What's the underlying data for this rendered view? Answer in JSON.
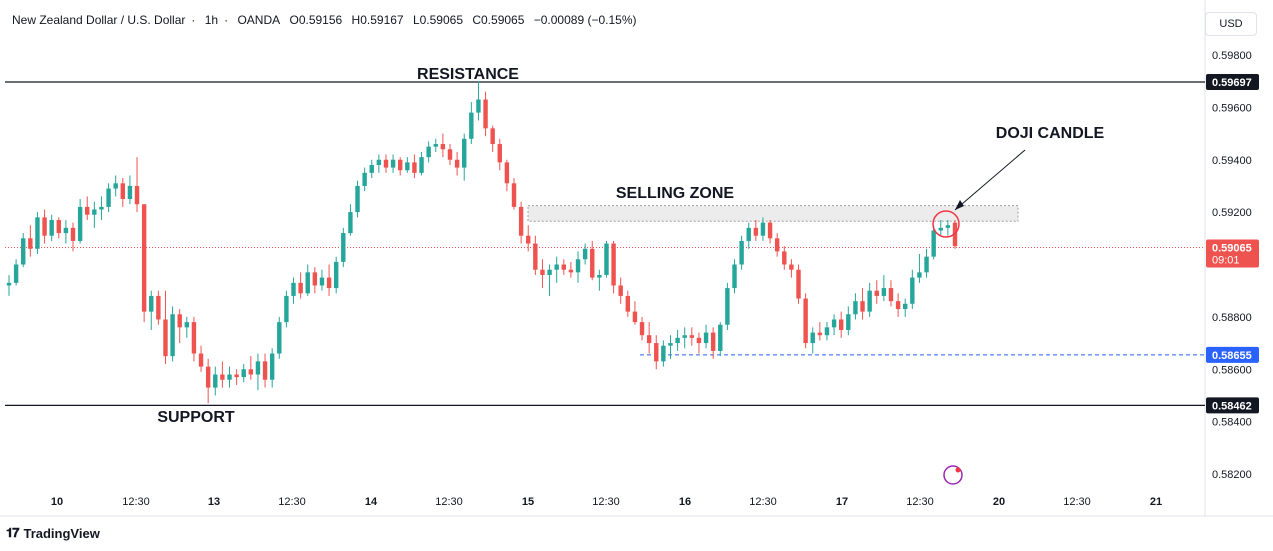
{
  "header": {
    "symbol": "New Zealand Dollar / U.S. Dollar",
    "interval": "1h",
    "exchange": "OANDA",
    "open": "O0.59156",
    "high": "H0.59167",
    "low": "L0.59065",
    "close": "C0.59065",
    "change": "−0.00089 (−0.15%)"
  },
  "currency_button": "USD",
  "brand": "TradingView",
  "colors": {
    "up": "#26a69a",
    "down": "#ef5350",
    "text": "#131722",
    "accent_blue": "#2962ff",
    "doji_circle": "#f23645"
  },
  "chart_data": {
    "type": "candlestick",
    "x_ticks": [
      "10",
      "12:30",
      "13",
      "12:30",
      "14",
      "12:30",
      "15",
      "12:30",
      "16",
      "12:30",
      "17",
      "12:30",
      "20",
      "12:30",
      "21"
    ],
    "y_ticks": [
      "0.59800",
      "0.59600",
      "0.59400",
      "0.59200",
      "0.58800",
      "0.58600",
      "0.58400",
      "0.58200"
    ],
    "y_range": [
      0.5813,
      0.5998
    ],
    "annotations": {
      "resistance": {
        "label": "RESISTANCE",
        "value": 0.59697,
        "tag": "0.59697"
      },
      "support": {
        "label": "SUPPORT",
        "value": 0.58462,
        "tag": "0.58462"
      },
      "selling_zone": {
        "label": "SELLING ZONE",
        "from": 0.59165,
        "to": 0.59225
      },
      "doji": {
        "label": "DOJI CANDLE"
      },
      "last_price": {
        "tag": "0.59065",
        "countdown": "09:01",
        "value": 0.59065
      },
      "dashed_level": {
        "tag": "0.58655",
        "value": 0.58655
      }
    },
    "candles": [
      [
        0.5892,
        0.5896,
        0.5888,
        0.5893
      ],
      [
        0.5893,
        0.5902,
        0.5892,
        0.59
      ],
      [
        0.59,
        0.5912,
        0.5899,
        0.591
      ],
      [
        0.591,
        0.5915,
        0.5903,
        0.5906
      ],
      [
        0.5906,
        0.592,
        0.5904,
        0.5918
      ],
      [
        0.5918,
        0.5921,
        0.5908,
        0.5911
      ],
      [
        0.5911,
        0.5919,
        0.5909,
        0.5917
      ],
      [
        0.5917,
        0.5918,
        0.591,
        0.5912
      ],
      [
        0.5912,
        0.5917,
        0.5908,
        0.5914
      ],
      [
        0.5914,
        0.5916,
        0.5905,
        0.5909
      ],
      [
        0.5909,
        0.5925,
        0.5908,
        0.5922
      ],
      [
        0.5922,
        0.5926,
        0.5917,
        0.5919
      ],
      [
        0.5919,
        0.5924,
        0.5914,
        0.5921
      ],
      [
        0.5921,
        0.5926,
        0.5917,
        0.5922
      ],
      [
        0.5922,
        0.5931,
        0.592,
        0.5929
      ],
      [
        0.5929,
        0.5934,
        0.5926,
        0.5931
      ],
      [
        0.5931,
        0.5933,
        0.5922,
        0.5925
      ],
      [
        0.5925,
        0.5934,
        0.5923,
        0.593
      ],
      [
        0.593,
        0.5941,
        0.592,
        0.5923
      ],
      [
        0.5923,
        0.5923,
        0.5878,
        0.5882
      ],
      [
        0.5882,
        0.589,
        0.5875,
        0.5888
      ],
      [
        0.5888,
        0.589,
        0.5877,
        0.5879
      ],
      [
        0.5879,
        0.589,
        0.5862,
        0.5865
      ],
      [
        0.5865,
        0.5884,
        0.5863,
        0.5881
      ],
      [
        0.5881,
        0.5883,
        0.587,
        0.5876
      ],
      [
        0.5876,
        0.588,
        0.5872,
        0.5878
      ],
      [
        0.5878,
        0.588,
        0.5863,
        0.5866
      ],
      [
        0.5866,
        0.5869,
        0.5859,
        0.5861
      ],
      [
        0.5861,
        0.5864,
        0.5847,
        0.5853
      ],
      [
        0.5853,
        0.5861,
        0.585,
        0.5858
      ],
      [
        0.5858,
        0.5863,
        0.5853,
        0.5856
      ],
      [
        0.5856,
        0.5861,
        0.5853,
        0.5858
      ],
      [
        0.5858,
        0.586,
        0.5854,
        0.5857
      ],
      [
        0.5857,
        0.5862,
        0.5855,
        0.586
      ],
      [
        0.586,
        0.5865,
        0.5856,
        0.5858
      ],
      [
        0.5858,
        0.5866,
        0.5852,
        0.5863
      ],
      [
        0.5863,
        0.5866,
        0.5853,
        0.5856
      ],
      [
        0.5856,
        0.5868,
        0.5853,
        0.5866
      ],
      [
        0.5866,
        0.588,
        0.5864,
        0.5878
      ],
      [
        0.5878,
        0.589,
        0.5876,
        0.5888
      ],
      [
        0.5888,
        0.5895,
        0.5885,
        0.5893
      ],
      [
        0.5893,
        0.5897,
        0.5887,
        0.5889
      ],
      [
        0.5889,
        0.59,
        0.5888,
        0.5897
      ],
      [
        0.5897,
        0.5899,
        0.5889,
        0.5892
      ],
      [
        0.5892,
        0.5898,
        0.589,
        0.5895
      ],
      [
        0.5895,
        0.59,
        0.5888,
        0.5891
      ],
      [
        0.5891,
        0.5903,
        0.5889,
        0.5901
      ],
      [
        0.5901,
        0.5914,
        0.5899,
        0.5912
      ],
      [
        0.5912,
        0.5923,
        0.5911,
        0.592
      ],
      [
        0.592,
        0.5932,
        0.5918,
        0.593
      ],
      [
        0.593,
        0.5937,
        0.5928,
        0.5935
      ],
      [
        0.5935,
        0.594,
        0.5933,
        0.5938
      ],
      [
        0.5938,
        0.5942,
        0.5935,
        0.594
      ],
      [
        0.594,
        0.5942,
        0.5935,
        0.5937
      ],
      [
        0.5937,
        0.5942,
        0.5935,
        0.594
      ],
      [
        0.594,
        0.5941,
        0.5934,
        0.5936
      ],
      [
        0.5936,
        0.5941,
        0.5935,
        0.5939
      ],
      [
        0.5939,
        0.5942,
        0.5933,
        0.5935
      ],
      [
        0.5935,
        0.5943,
        0.5934,
        0.5941
      ],
      [
        0.5941,
        0.5947,
        0.5939,
        0.5945
      ],
      [
        0.5945,
        0.5948,
        0.5943,
        0.5946
      ],
      [
        0.5946,
        0.595,
        0.5941,
        0.5944
      ],
      [
        0.5944,
        0.5946,
        0.5938,
        0.594
      ],
      [
        0.594,
        0.5943,
        0.5934,
        0.5937
      ],
      [
        0.5937,
        0.595,
        0.5932,
        0.5948
      ],
      [
        0.5948,
        0.5962,
        0.5946,
        0.5958
      ],
      [
        0.5958,
        0.597,
        0.5955,
        0.5963
      ],
      [
        0.5963,
        0.5966,
        0.5949,
        0.5952
      ],
      [
        0.5952,
        0.5953,
        0.5943,
        0.5946
      ],
      [
        0.5946,
        0.5948,
        0.5936,
        0.5939
      ],
      [
        0.5939,
        0.594,
        0.5928,
        0.5931
      ],
      [
        0.5931,
        0.5933,
        0.5921,
        0.5922
      ],
      [
        0.5922,
        0.5924,
        0.5908,
        0.5911
      ],
      [
        0.5911,
        0.5915,
        0.5905,
        0.5908
      ],
      [
        0.5908,
        0.5911,
        0.5896,
        0.5898
      ],
      [
        0.5898,
        0.5902,
        0.5891,
        0.5896
      ],
      [
        0.5896,
        0.59,
        0.5888,
        0.5898
      ],
      [
        0.5898,
        0.5903,
        0.5893,
        0.59
      ],
      [
        0.59,
        0.5902,
        0.5896,
        0.5898
      ],
      [
        0.5898,
        0.5901,
        0.5895,
        0.5897
      ],
      [
        0.5897,
        0.5905,
        0.5893,
        0.5902
      ],
      [
        0.5902,
        0.5908,
        0.59,
        0.5906
      ],
      [
        0.5906,
        0.5909,
        0.5894,
        0.5895
      ],
      [
        0.5895,
        0.5898,
        0.589,
        0.5896
      ],
      [
        0.5896,
        0.5909,
        0.5895,
        0.5908
      ],
      [
        0.5908,
        0.5909,
        0.5889,
        0.5892
      ],
      [
        0.5892,
        0.5895,
        0.5885,
        0.5888
      ],
      [
        0.5888,
        0.589,
        0.588,
        0.5882
      ],
      [
        0.5882,
        0.5886,
        0.5877,
        0.5878
      ],
      [
        0.5878,
        0.588,
        0.5871,
        0.5873
      ],
      [
        0.5873,
        0.5878,
        0.5866,
        0.587
      ],
      [
        0.587,
        0.5873,
        0.586,
        0.5863
      ],
      [
        0.5863,
        0.5871,
        0.5861,
        0.5869
      ],
      [
        0.5869,
        0.5873,
        0.5864,
        0.587
      ],
      [
        0.587,
        0.5875,
        0.5867,
        0.5872
      ],
      [
        0.5872,
        0.5876,
        0.5868,
        0.5873
      ],
      [
        0.5873,
        0.5876,
        0.5869,
        0.5872
      ],
      [
        0.5872,
        0.5874,
        0.5866,
        0.587
      ],
      [
        0.587,
        0.5877,
        0.5868,
        0.5874
      ],
      [
        0.5874,
        0.5876,
        0.5864,
        0.5867
      ],
      [
        0.5867,
        0.5878,
        0.5865,
        0.5877
      ],
      [
        0.5877,
        0.5893,
        0.5875,
        0.5891
      ],
      [
        0.5891,
        0.5902,
        0.5889,
        0.59
      ],
      [
        0.59,
        0.5911,
        0.5898,
        0.5909
      ],
      [
        0.5909,
        0.5916,
        0.5906,
        0.5914
      ],
      [
        0.5914,
        0.5917,
        0.5909,
        0.5911
      ],
      [
        0.5911,
        0.5918,
        0.5909,
        0.5916
      ],
      [
        0.5916,
        0.5917,
        0.5908,
        0.591
      ],
      [
        0.591,
        0.5912,
        0.5903,
        0.5905
      ],
      [
        0.5905,
        0.5907,
        0.5898,
        0.59
      ],
      [
        0.59,
        0.5902,
        0.5895,
        0.5898
      ],
      [
        0.5898,
        0.59,
        0.5885,
        0.5887
      ],
      [
        0.5887,
        0.5889,
        0.5868,
        0.587
      ],
      [
        0.587,
        0.5876,
        0.5866,
        0.5874
      ],
      [
        0.5874,
        0.5878,
        0.5871,
        0.5873
      ],
      [
        0.5873,
        0.5878,
        0.5871,
        0.5876
      ],
      [
        0.5876,
        0.5881,
        0.5873,
        0.5879
      ],
      [
        0.5879,
        0.5882,
        0.5872,
        0.5875
      ],
      [
        0.5875,
        0.5884,
        0.5873,
        0.5881
      ],
      [
        0.5881,
        0.5889,
        0.5879,
        0.5886
      ],
      [
        0.5886,
        0.5891,
        0.5879,
        0.5882
      ],
      [
        0.5882,
        0.5893,
        0.588,
        0.589
      ],
      [
        0.589,
        0.5894,
        0.5885,
        0.5888
      ],
      [
        0.5888,
        0.5896,
        0.5886,
        0.5891
      ],
      [
        0.5891,
        0.5894,
        0.5884,
        0.5886
      ],
      [
        0.5886,
        0.5889,
        0.588,
        0.5883
      ],
      [
        0.5883,
        0.5887,
        0.588,
        0.5885
      ],
      [
        0.5885,
        0.5898,
        0.5883,
        0.5895
      ],
      [
        0.5895,
        0.5904,
        0.5893,
        0.5897
      ],
      [
        0.5897,
        0.5906,
        0.5895,
        0.5903
      ],
      [
        0.5903,
        0.5915,
        0.5902,
        0.5913
      ],
      [
        0.5913,
        0.5917,
        0.5911,
        0.5914
      ],
      [
        0.5914,
        0.5917,
        0.5911,
        0.5915
      ],
      [
        0.5916,
        0.5917,
        0.5906,
        0.5907
      ]
    ]
  }
}
